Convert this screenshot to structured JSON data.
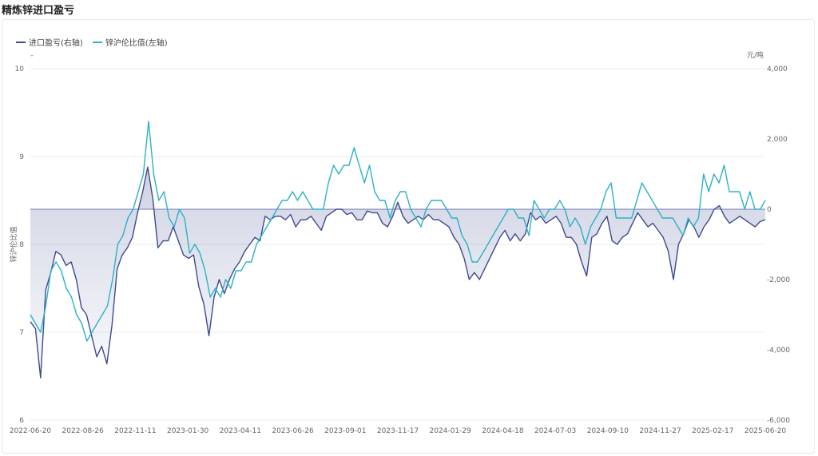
{
  "page": {
    "title": "精炼锌进口盈亏"
  },
  "legend": [
    {
      "label": "进口盈亏(右轴)",
      "color": "#3d4a8f"
    },
    {
      "label": "锌沪伦比值(左轴)",
      "color": "#2fb0c6"
    }
  ],
  "axes": {
    "left_name": "锌沪伦比值",
    "left_unit": "-",
    "right_unit": "元/吨"
  },
  "chart_data": {
    "type": "line",
    "title": "精炼锌进口盈亏",
    "x_labels": [
      "2022-06-20",
      "2022-08-26",
      "2022-11-11",
      "2023-01-30",
      "2023-04-11",
      "2023-06-26",
      "2023-09-01",
      "2023-11-17",
      "2024-01-29",
      "2024-04-18",
      "2024-07-03",
      "2024-09-10",
      "2024-11-27",
      "2025-02-17",
      "2025-06-20"
    ],
    "left_axis": {
      "name": "锌沪伦比值",
      "unit": "-",
      "min": 6,
      "max": 10,
      "ticks": [
        "6",
        "7",
        "8",
        "9",
        "10"
      ]
    },
    "right_axis": {
      "unit": "元/吨",
      "min": -6000,
      "max": 4000,
      "ticks": [
        "-6,000",
        "-4,000",
        "-2,000",
        "0",
        "2,000",
        "4,000"
      ]
    },
    "series": [
      {
        "name": "进口盈亏(右轴)",
        "axis": "right",
        "color": "#3d4a8f",
        "area_to_zero": true,
        "values": [
          -3200,
          -3400,
          -4800,
          -2300,
          -1800,
          -1200,
          -1300,
          -1600,
          -1500,
          -2000,
          -2800,
          -3000,
          -3600,
          -4200,
          -3900,
          -4400,
          -3300,
          -1700,
          -1300,
          -1100,
          -800,
          -100,
          500,
          1200,
          300,
          -1100,
          -900,
          -900,
          -500,
          -900,
          -1300,
          -1400,
          -1300,
          -2200,
          -2700,
          -3600,
          -2500,
          -2000,
          -2400,
          -2000,
          -1700,
          -1500,
          -1200,
          -1000,
          -800,
          -900,
          -200,
          -300,
          -200,
          -200,
          -300,
          -150,
          -500,
          -300,
          -300,
          -200,
          -400,
          -600,
          -200,
          -100,
          0,
          0,
          -150,
          -100,
          -300,
          -300,
          -50,
          -100,
          -100,
          -400,
          -500,
          -200,
          200,
          -200,
          -400,
          -300,
          -200,
          -300,
          -150,
          -300,
          -300,
          -400,
          -500,
          -800,
          -1000,
          -1400,
          -2000,
          -1800,
          -2000,
          -1700,
          -1400,
          -1100,
          -800,
          -600,
          -900,
          -700,
          -900,
          -700,
          -100,
          -300,
          -200,
          -400,
          -300,
          -200,
          -400,
          -800,
          -800,
          -1000,
          -1500,
          -1900,
          -800,
          -700,
          -400,
          -200,
          -900,
          -1000,
          -800,
          -700,
          -400,
          -100,
          -300,
          -500,
          -400,
          -600,
          -800,
          -1200,
          -2000,
          -1000,
          -700,
          -300,
          -500,
          -800,
          -500,
          -300,
          0,
          100,
          -200,
          -400,
          -300,
          -200,
          -300,
          -400,
          -500,
          -350,
          -300
        ]
      },
      {
        "name": "锌沪伦比值(左轴)",
        "axis": "left",
        "color": "#2fb0c6",
        "values": [
          7.2,
          7.1,
          7.0,
          7.3,
          7.7,
          7.8,
          7.7,
          7.5,
          7.4,
          7.2,
          7.1,
          6.9,
          7.0,
          7.1,
          7.2,
          7.3,
          7.6,
          8.0,
          8.1,
          8.3,
          8.4,
          8.6,
          8.8,
          9.4,
          8.8,
          8.5,
          8.6,
          8.3,
          8.2,
          8.4,
          8.3,
          7.9,
          8.0,
          7.9,
          7.7,
          7.4,
          7.5,
          7.4,
          7.6,
          7.5,
          7.7,
          7.7,
          7.8,
          7.8,
          8.0,
          8.1,
          8.2,
          8.3,
          8.4,
          8.5,
          8.5,
          8.6,
          8.5,
          8.6,
          8.5,
          8.4,
          8.4,
          8.4,
          8.7,
          8.9,
          8.8,
          8.9,
          8.9,
          9.1,
          8.9,
          8.7,
          8.9,
          8.6,
          8.5,
          8.5,
          8.3,
          8.5,
          8.6,
          8.6,
          8.4,
          8.3,
          8.2,
          8.4,
          8.5,
          8.5,
          8.5,
          8.4,
          8.3,
          8.3,
          8.1,
          8.0,
          7.8,
          7.8,
          7.9,
          8.0,
          8.1,
          8.2,
          8.3,
          8.4,
          8.4,
          8.3,
          8.3,
          8.1,
          8.5,
          8.4,
          8.3,
          8.4,
          8.4,
          8.5,
          8.4,
          8.2,
          8.3,
          8.2,
          8.0,
          8.2,
          8.3,
          8.4,
          8.6,
          8.7,
          8.3,
          8.3,
          8.3,
          8.3,
          8.5,
          8.7,
          8.6,
          8.5,
          8.4,
          8.3,
          8.3,
          8.3,
          8.2,
          8.1,
          8.3,
          8.2,
          8.3,
          8.8,
          8.6,
          8.8,
          8.7,
          8.9,
          8.6,
          8.6,
          8.6,
          8.4,
          8.6,
          8.4,
          8.4,
          8.5
        ]
      }
    ],
    "grid": true,
    "legend_position": "top-left"
  }
}
